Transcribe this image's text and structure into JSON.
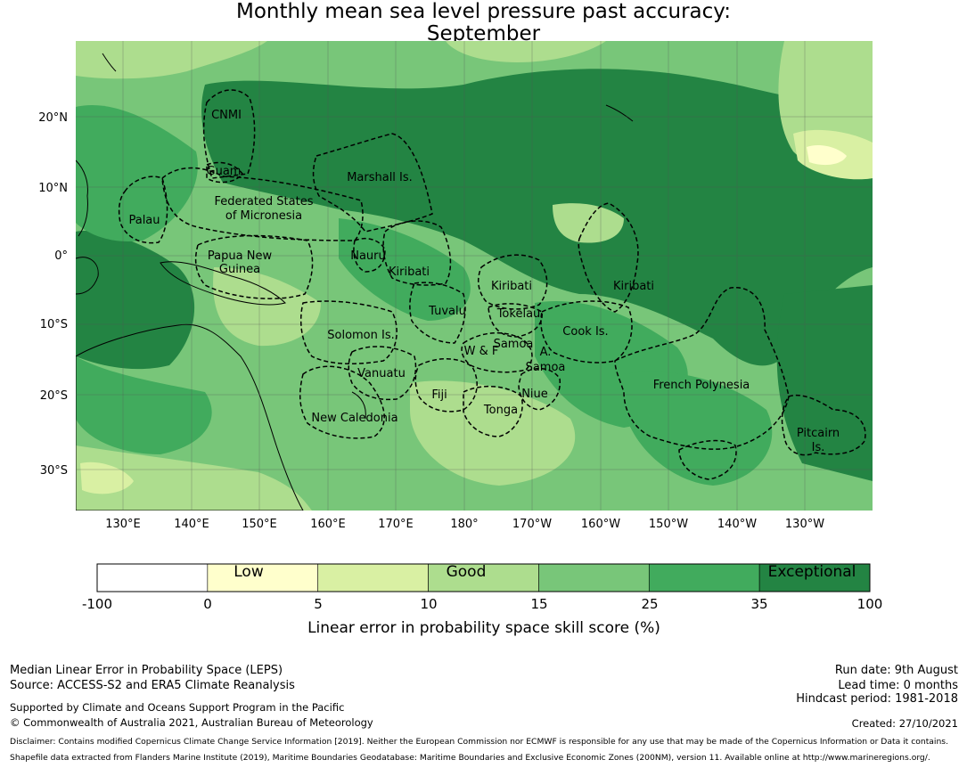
{
  "title_line1": "Monthly mean sea level pressure past accuracy:",
  "title_line2": "September",
  "map": {
    "lat_labels": [
      "20°N",
      "10°N",
      "0°",
      "10°S",
      "20°S",
      "30°S"
    ],
    "lon_labels": [
      "130°E",
      "140°E",
      "150°E",
      "160°E",
      "170°E",
      "180°",
      "170°W",
      "160°W",
      "150°W",
      "140°W",
      "130°W"
    ],
    "regions": [
      "CNMI",
      "Guam",
      "Marshall Is.",
      "Federated States",
      "of Micronesia",
      "Palau",
      "Papua New",
      "Guinea",
      "Nauru",
      "Kiribati",
      "Kiribati",
      "Kiribati",
      "Tuvalu",
      "Tokelau",
      "Solomon Is.",
      "Samoa",
      "W & F",
      "A.",
      "Samoa",
      "Cook Is.",
      "Vanuatu",
      "Fiji",
      "Niue",
      "French Polynesia",
      "Tonga",
      "New Caledonia",
      "Pitcairn",
      "Is."
    ],
    "colors": {
      "low": "#ffffcc",
      "low_good": "#d9f0a3",
      "good": "#addd8e",
      "good_high": "#78c679",
      "high": "#41ab5d",
      "exceptional": "#238443"
    }
  },
  "colorbar": {
    "ticks": [
      "-100",
      "0",
      "5",
      "10",
      "15",
      "25",
      "35",
      "100"
    ],
    "category_labels": [
      "Low",
      "Good",
      "Exceptional"
    ],
    "bins": [
      {
        "from": -100,
        "to": 0,
        "color": "#ffffff"
      },
      {
        "from": 0,
        "to": 5,
        "color": "#ffffcc"
      },
      {
        "from": 5,
        "to": 10,
        "color": "#d9f0a3"
      },
      {
        "from": 10,
        "to": 15,
        "color": "#addd8e"
      },
      {
        "from": 15,
        "to": 25,
        "color": "#78c679"
      },
      {
        "from": 25,
        "to": 35,
        "color": "#41ab5d"
      },
      {
        "from": 35,
        "to": 100,
        "color": "#238443"
      }
    ],
    "label": "Linear error in probability space skill score (%)"
  },
  "footer": {
    "left1": "Median Linear Error in Probability Space (LEPS)",
    "left2": "Source: ACCESS-S2 and ERA5 Climate Reanalysis",
    "left3": "Supported by Climate and Oceans Support Program in the Pacific",
    "left4": "© Commonwealth of Australia 2021, Australian Bureau of Meteorology",
    "right1": "Run date: 9th August",
    "right2": "Lead time: 0 months",
    "right3": "Hindcast period: 1981-2018",
    "right4": "Created: 27/10/2021",
    "disclaimer": "Disclaimer: Contains modified Copernicus Climate Change Service Information [2019]. Neither the European Commission nor ECMWF is responsible for any use that may be made of the Copernicus Information or Data it contains.",
    "shapefile": "Shapefile data extracted from Flanders Marine Institute (2019), Maritime Boundaries Geodatabase: Maritime Boundaries and Exclusive Economic Zones (200NM), version 11. Available online at http://www.marineregions.org/."
  }
}
